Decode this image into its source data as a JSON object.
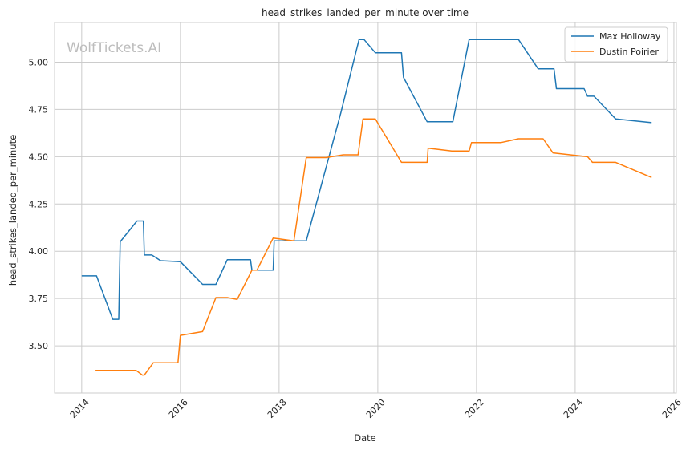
{
  "chart_data": {
    "type": "line",
    "title": "head_strikes_landed_per_minute over time",
    "xlabel": "Date",
    "ylabel": "head_strikes_landed_per_minute",
    "watermark": "WolfTickets.AI",
    "xlim": [
      2013.45,
      2026.05
    ],
    "ylim": [
      3.25,
      5.21
    ],
    "xticks": [
      2014,
      2016,
      2018,
      2020,
      2022,
      2024,
      2026
    ],
    "yticks": [
      3.5,
      3.75,
      4.0,
      4.25,
      4.5,
      4.75,
      5.0
    ],
    "ytick_labels": [
      "3.50",
      "3.75",
      "4.00",
      "4.25",
      "4.50",
      "4.75",
      "5.00"
    ],
    "grid": true,
    "legend": "top-right",
    "series": [
      {
        "name": "Max Holloway",
        "color": "#1f77b4",
        "x": [
          2014.0,
          2014.3,
          2014.63,
          2014.75,
          2014.78,
          2015.12,
          2015.25,
          2015.27,
          2015.42,
          2015.6,
          2016.0,
          2016.45,
          2016.72,
          2016.95,
          2017.42,
          2017.45,
          2017.88,
          2017.9,
          2018.55,
          2019.25,
          2019.62,
          2019.72,
          2019.95,
          2020.48,
          2020.52,
          2021.0,
          2021.52,
          2021.85,
          2022.45,
          2022.85,
          2023.25,
          2023.57,
          2023.62,
          2024.18,
          2024.25,
          2024.38,
          2024.82,
          2025.55
        ],
        "y": [
          3.87,
          3.87,
          3.64,
          3.64,
          4.05,
          4.16,
          4.16,
          3.98,
          3.98,
          3.95,
          3.945,
          3.825,
          3.825,
          3.955,
          3.955,
          3.9,
          3.9,
          4.055,
          4.055,
          4.73,
          5.12,
          5.12,
          5.05,
          5.05,
          4.92,
          4.685,
          4.685,
          5.12,
          5.12,
          5.12,
          4.965,
          4.965,
          4.86,
          4.86,
          4.82,
          4.82,
          4.7,
          4.68
        ]
      },
      {
        "name": "Dustin Poirier",
        "color": "#ff7f0e",
        "x": [
          2014.28,
          2015.0,
          2015.1,
          2015.23,
          2015.27,
          2015.45,
          2015.95,
          2016.0,
          2016.45,
          2016.72,
          2016.95,
          2017.15,
          2017.45,
          2017.55,
          2017.88,
          2018.3,
          2018.55,
          2018.95,
          2019.3,
          2019.6,
          2019.7,
          2019.95,
          2020.48,
          2021.0,
          2021.02,
          2021.5,
          2021.85,
          2021.9,
          2022.5,
          2022.85,
          2023.35,
          2023.55,
          2024.25,
          2024.35,
          2024.82,
          2025.55
        ],
        "y": [
          3.37,
          3.37,
          3.37,
          3.345,
          3.345,
          3.41,
          3.41,
          3.555,
          3.575,
          3.755,
          3.755,
          3.745,
          3.9,
          3.9,
          4.07,
          4.055,
          4.495,
          4.495,
          4.51,
          4.51,
          4.7,
          4.7,
          4.47,
          4.47,
          4.545,
          4.53,
          4.53,
          4.575,
          4.575,
          4.595,
          4.595,
          4.52,
          4.5,
          4.47,
          4.47,
          4.39
        ]
      }
    ]
  }
}
